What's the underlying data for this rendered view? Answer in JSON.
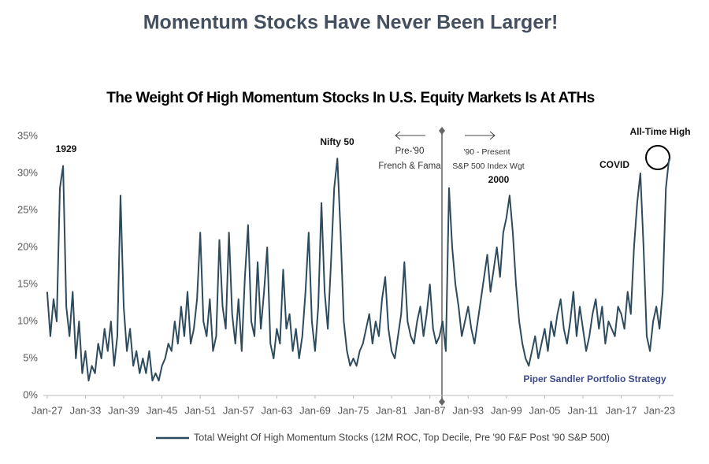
{
  "chart_data": {
    "type": "line",
    "title": "Momentum Stocks Have Never Been Larger!",
    "subtitle": "The Weight Of High Momentum Stocks In U.S. Equity Markets Is At ATHs",
    "x": [
      1927,
      1927.5,
      1928,
      1928.5,
      1929,
      1929.5,
      1930,
      1930.5,
      1931,
      1931.5,
      1932,
      1932.5,
      1933,
      1933.5,
      1934,
      1934.5,
      1935,
      1935.5,
      1936,
      1936.5,
      1937,
      1937.5,
      1938,
      1938.5,
      1939,
      1939.5,
      1940,
      1940.5,
      1941,
      1941.5,
      1942,
      1942.5,
      1943,
      1943.5,
      1944,
      1944.5,
      1945,
      1945.5,
      1946,
      1946.5,
      1947,
      1947.5,
      1948,
      1948.5,
      1949,
      1949.5,
      1950,
      1950.5,
      1951,
      1951.5,
      1952,
      1952.5,
      1953,
      1953.5,
      1954,
      1954.5,
      1955,
      1955.5,
      1956,
      1956.5,
      1957,
      1957.5,
      1958,
      1958.5,
      1959,
      1959.5,
      1960,
      1960.5,
      1961,
      1961.5,
      1962,
      1962.5,
      1963,
      1963.5,
      1964,
      1964.5,
      1965,
      1965.5,
      1966,
      1966.5,
      1967,
      1967.5,
      1968,
      1968.5,
      1969,
      1969.5,
      1970,
      1970.5,
      1971,
      1971.5,
      1972,
      1972.5,
      1973,
      1973.5,
      1974,
      1974.5,
      1975,
      1975.5,
      1976,
      1976.5,
      1977,
      1977.5,
      1978,
      1978.5,
      1979,
      1979.5,
      1980,
      1980.5,
      1981,
      1981.5,
      1982,
      1982.5,
      1983,
      1983.5,
      1984,
      1984.5,
      1985,
      1985.5,
      1986,
      1986.5,
      1987,
      1987.5,
      1988,
      1988.5,
      1989,
      1989.5,
      1990,
      1990.5,
      1991,
      1991.5,
      1992,
      1992.5,
      1993,
      1993.5,
      1994,
      1994.5,
      1995,
      1995.5,
      1996,
      1996.5,
      1997,
      1997.5,
      1998,
      1998.5,
      1999,
      1999.5,
      2000,
      2000.5,
      2001,
      2001.5,
      2002,
      2002.5,
      2003,
      2003.5,
      2004,
      2004.5,
      2005,
      2005.5,
      2006,
      2006.5,
      2007,
      2007.5,
      2008,
      2008.5,
      2009,
      2009.5,
      2010,
      2010.5,
      2011,
      2011.5,
      2012,
      2012.5,
      2013,
      2013.5,
      2014,
      2014.5,
      2015,
      2015.5,
      2016,
      2016.5,
      2017,
      2017.5,
      2018,
      2018.5,
      2019,
      2019.5,
      2020,
      2020.5,
      2021,
      2021.5,
      2022,
      2022.5,
      2023,
      2023.5,
      2024,
      2024.5
    ],
    "series": [
      {
        "name": "Total Weight Of High Momentum Stocks (12M ROC, Top Decile, Pre '90 F&F Post '90 S&P 500)",
        "color": "#2d4b5c",
        "values": [
          14,
          8,
          13,
          10,
          28,
          31,
          12,
          8,
          14,
          5,
          10,
          3,
          6,
          2,
          4,
          3,
          7,
          5,
          9,
          6,
          10,
          4,
          8,
          27,
          12,
          6,
          9,
          4,
          6,
          3,
          5,
          3,
          6,
          2,
          3,
          2,
          4,
          5,
          7,
          6,
          10,
          7,
          12,
          8,
          14,
          7,
          9,
          13,
          22,
          10,
          8,
          13,
          6,
          8,
          21,
          12,
          9,
          22,
          11,
          7,
          13,
          6,
          16,
          23,
          10,
          8,
          18,
          9,
          14,
          20,
          7,
          5,
          9,
          7,
          17,
          9,
          11,
          6,
          9,
          5,
          8,
          14,
          22,
          10,
          6,
          12,
          26,
          14,
          9,
          18,
          28,
          32,
          22,
          10,
          6,
          4,
          5,
          4,
          6,
          7,
          9,
          11,
          7,
          10,
          8,
          13,
          16,
          9,
          6,
          5,
          8,
          11,
          18,
          10,
          8,
          7,
          10,
          12,
          8,
          11,
          15,
          9,
          7,
          8,
          10,
          6,
          28,
          20,
          15,
          12,
          8,
          10,
          12,
          9,
          7,
          10,
          13,
          16,
          19,
          14,
          17,
          20,
          16,
          22,
          24,
          27,
          22,
          15,
          10,
          7,
          5,
          4,
          6,
          8,
          5,
          7,
          9,
          6,
          10,
          8,
          11,
          13,
          9,
          7,
          10,
          14,
          8,
          12,
          9,
          6,
          8,
          11,
          13,
          9,
          12,
          7,
          10,
          9,
          8,
          12,
          11,
          9,
          14,
          11,
          20,
          26,
          30,
          20,
          8,
          6,
          10,
          12,
          9,
          14,
          28,
          32
        ]
      }
    ],
    "xlim": [
      1926.4,
      2025.2
    ],
    "xticks": [
      {
        "value": 1927,
        "label": "Jan-27"
      },
      {
        "value": 1933,
        "label": "Jan-33"
      },
      {
        "value": 1939,
        "label": "Jan-39"
      },
      {
        "value": 1945,
        "label": "Jan-45"
      },
      {
        "value": 1951,
        "label": "Jan-51"
      },
      {
        "value": 1957,
        "label": "Jan-57"
      },
      {
        "value": 1963,
        "label": "Jan-63"
      },
      {
        "value": 1969,
        "label": "Jan-69"
      },
      {
        "value": 1975,
        "label": "Jan-75"
      },
      {
        "value": 1981,
        "label": "Jan-81"
      },
      {
        "value": 1987,
        "label": "Jan-87"
      },
      {
        "value": 1993,
        "label": "Jan-93"
      },
      {
        "value": 1999,
        "label": "Jan-99"
      },
      {
        "value": 2005,
        "label": "Jan-05"
      },
      {
        "value": 2011,
        "label": "Jan-11"
      },
      {
        "value": 2017,
        "label": "Jan-17"
      },
      {
        "value": 2023,
        "label": "Jan-23"
      }
    ],
    "ylim": [
      0,
      35
    ],
    "yticks": [
      {
        "value": 0,
        "label": "0%"
      },
      {
        "value": 5,
        "label": "5%"
      },
      {
        "value": 10,
        "label": "10%"
      },
      {
        "value": 15,
        "label": "15%"
      },
      {
        "value": 20,
        "label": "20%"
      },
      {
        "value": 25,
        "label": "25%"
      },
      {
        "value": 30,
        "label": "30%"
      },
      {
        "value": 35,
        "label": "35%"
      }
    ],
    "grid": false,
    "legend": "bottom",
    "annotations": [
      "1929",
      "Nifty 50",
      "2000",
      "COVID",
      "All-Time High",
      "Pre-'90",
      "French & Fama",
      "'90 - Present",
      "S&P 500 Index Wgt",
      "Piper Sandler Portfolio Strategy"
    ]
  }
}
